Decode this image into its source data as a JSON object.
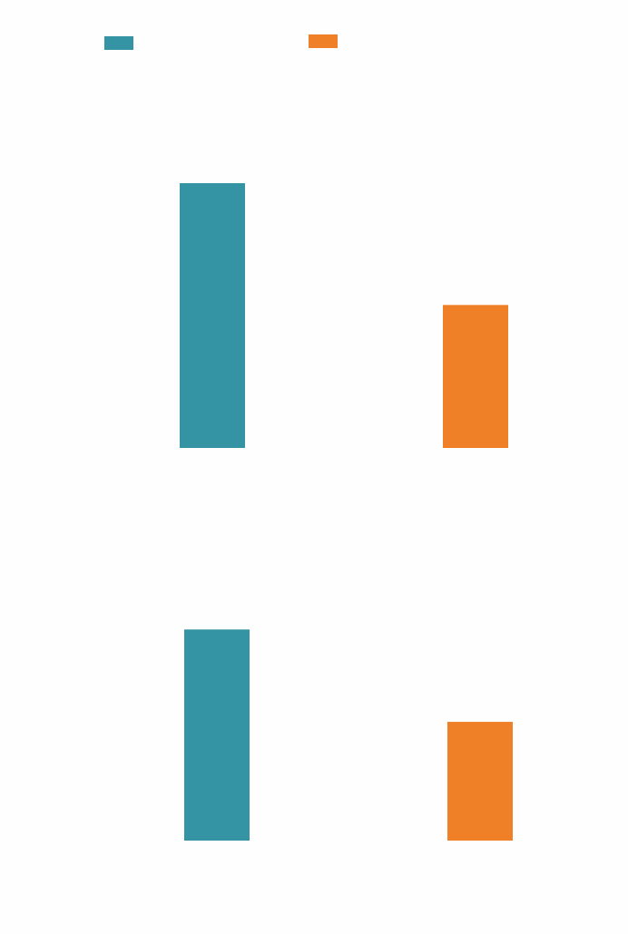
{
  "colors": {
    "background": "#fefefe",
    "series_a": "#3494a4",
    "series_b": "#f08028"
  },
  "legend": {
    "placement": "top",
    "items": [
      {
        "color_key": "series_a",
        "label": ""
      },
      {
        "color_key": "series_b",
        "label": ""
      }
    ]
  },
  "chart_data": [
    {
      "type": "bar",
      "title": "",
      "xlabel": "",
      "ylabel": "",
      "grid": false,
      "ylim": [
        0,
        1
      ],
      "series": [
        {
          "color_key": "series_a",
          "values": [
            1.0
          ]
        },
        {
          "color_key": "series_b",
          "values": [
            0.54
          ]
        }
      ]
    },
    {
      "type": "bar",
      "title": "",
      "xlabel": "",
      "ylabel": "",
      "grid": false,
      "ylim": [
        0,
        1
      ],
      "series": [
        {
          "color_key": "series_a",
          "values": [
            0.8
          ]
        },
        {
          "color_key": "series_b",
          "values": [
            0.45
          ]
        }
      ]
    }
  ]
}
